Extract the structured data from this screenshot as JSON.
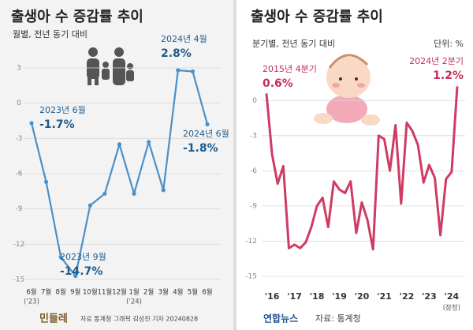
{
  "chart_data": [
    {
      "type": "line",
      "title": "출생아 수 증감률 추이",
      "subtitle": "월별, 전년 동기 대비",
      "categories": [
        "6월",
        "7월",
        "8월",
        "9월",
        "10월",
        "11월",
        "12월",
        "1월",
        "2월",
        "3월",
        "4월",
        "5월",
        "6월"
      ],
      "x_sublabels": [
        "('23)",
        null,
        null,
        null,
        null,
        null,
        null,
        "('24)",
        null,
        null,
        null,
        null,
        null
      ],
      "values": [
        -1.7,
        -6.7,
        -13.1,
        -14.7,
        -8.7,
        -7.7,
        -3.5,
        -7.7,
        -3.3,
        -7.4,
        2.8,
        2.7,
        -1.8
      ],
      "value_labels": [
        "-1.7%",
        null,
        null,
        "-14.7%",
        null,
        null,
        null,
        null,
        null,
        null,
        "2.8%",
        null,
        "-1.8%"
      ],
      "annotations": [
        "2023년 6월",
        null,
        null,
        "2023년 9월",
        null,
        null,
        null,
        null,
        null,
        null,
        "2024년 4월",
        null,
        "2024년 6월"
      ],
      "color": "#4a90c8",
      "label_color": "#1d5b8c",
      "markers": true,
      "ylim": [
        -15,
        3
      ],
      "yticks": [
        3,
        0,
        -3,
        -6,
        -9,
        -12,
        -15
      ],
      "grid": true,
      "source": "자료 통계청 그래픽 김성진 기자 20240828",
      "logo": "민들레"
    },
    {
      "type": "line",
      "title": "출생아 수 증감률 추이",
      "subtitle": "분기별, 전년 동기 대비",
      "unit": "단위: %",
      "categories": [
        null,
        "'16",
        null,
        null,
        null,
        "'17",
        null,
        null,
        null,
        "'18",
        null,
        null,
        null,
        "'19",
        null,
        null,
        null,
        "'20",
        null,
        null,
        null,
        "'21",
        null,
        null,
        null,
        "'22",
        null,
        null,
        null,
        "'23",
        null,
        null,
        null,
        "'24",
        null
      ],
      "x_sublabels": [
        null,
        null,
        null,
        null,
        null,
        null,
        null,
        null,
        null,
        null,
        null,
        null,
        null,
        null,
        null,
        null,
        null,
        null,
        null,
        null,
        null,
        null,
        null,
        null,
        null,
        null,
        null,
        null,
        null,
        null,
        null,
        null,
        null,
        "(잠정)",
        null
      ],
      "values": [
        0.6,
        -4.6,
        -7.1,
        -5.6,
        -12.6,
        -12.3,
        -12.6,
        -12.1,
        -10.8,
        -9.0,
        -8.3,
        -10.8,
        -6.9,
        -7.6,
        -7.9,
        -6.9,
        -11.3,
        -8.7,
        -10.2,
        -12.7,
        -3.0,
        -3.3,
        -6.0,
        -2.1,
        -8.8,
        -1.9,
        -2.6,
        -3.8,
        -7.0,
        -5.5,
        -6.6,
        -11.5,
        -6.7,
        -6.1,
        1.2
      ],
      "value_labels": [
        "0.6%",
        null,
        null,
        null,
        null,
        null,
        null,
        null,
        null,
        null,
        null,
        null,
        null,
        null,
        null,
        null,
        null,
        null,
        null,
        null,
        null,
        null,
        null,
        null,
        null,
        null,
        null,
        null,
        null,
        null,
        null,
        null,
        null,
        null,
        "1.2%"
      ],
      "annotations": [
        "2015년 4분기",
        null,
        null,
        null,
        null,
        null,
        null,
        null,
        null,
        null,
        null,
        null,
        null,
        null,
        null,
        null,
        null,
        null,
        null,
        null,
        null,
        null,
        null,
        null,
        null,
        null,
        null,
        null,
        null,
        null,
        null,
        null,
        null,
        null,
        "2024년 2분기"
      ],
      "color": "#cf3b63",
      "label_color": "#c42d58",
      "markers": false,
      "ylim": [
        -15,
        1.5
      ],
      "yticks": [
        0,
        -3,
        -6,
        -9,
        -12,
        -15
      ],
      "grid": true,
      "source": "자료: 통계청",
      "logo": "연합뉴스"
    }
  ]
}
